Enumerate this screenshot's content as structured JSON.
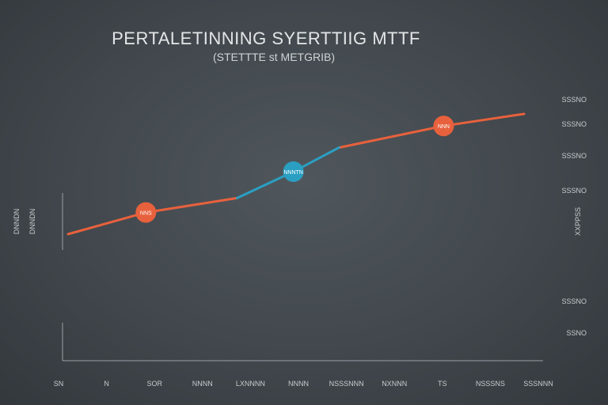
{
  "chart_data": {
    "type": "line",
    "title": "PERTALETINNING SYERTTIIG MTTF",
    "subtitle": "(STETTTE st METGRIB)",
    "ylabel_left": "DNNDN",
    "ylabel_right": "XXPPSS",
    "x_tick_labels": [
      "SN",
      "N",
      "SOR",
      "NNNN",
      "LXNNNN",
      "NNNN",
      "NSSSNNN",
      "NXNNN",
      "TS",
      "NSSSNS",
      "SSSNNN"
    ],
    "y_tick_labels": [
      "SSSNO",
      "SSSNO",
      "SSSNO",
      "SSSNO",
      "SSSNO",
      "SSNO"
    ],
    "series": [
      {
        "color": "#e8613d",
        "values": [
          0,
          18,
          30,
          52,
          72,
          90,
          100
        ],
        "segments": [
          [
            0,
            2
          ],
          [
            4,
            6
          ]
        ]
      },
      {
        "color": "#2a9fc2",
        "values": [
          0,
          18,
          30,
          52,
          72,
          90,
          100
        ],
        "segments": [
          [
            2,
            4
          ]
        ]
      }
    ],
    "x": [
      0,
      1,
      2,
      3,
      4,
      5,
      6
    ],
    "x_positions_per_point": [
      0,
      1.45,
      3.15,
      4.2,
      5.05,
      7.0,
      8.5
    ],
    "markers": [
      {
        "x_index": 1,
        "label": "NNS",
        "color": "#e8613d"
      },
      {
        "x_index": 3,
        "label": "NNNTN",
        "color": "#2a9fc2"
      },
      {
        "x_index": 5,
        "label": "NNN",
        "color": "#e8613d"
      }
    ],
    "ylim": [
      0,
      100
    ],
    "grid": false,
    "legend": "none"
  }
}
